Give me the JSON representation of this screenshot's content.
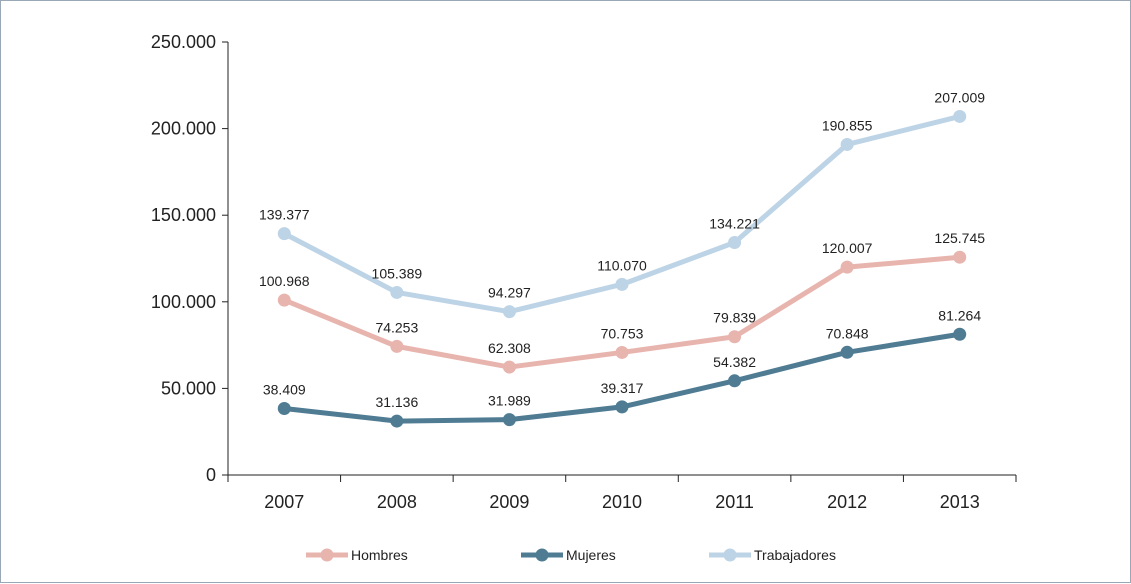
{
  "chart_data": {
    "type": "line",
    "categories": [
      "2007",
      "2008",
      "2009",
      "2010",
      "2011",
      "2012",
      "2013"
    ],
    "ylim": [
      0,
      250000
    ],
    "yticks": [
      0,
      50000,
      100000,
      150000,
      200000,
      250000
    ],
    "ytick_labels": [
      "0",
      "50.000",
      "100.000",
      "150.000",
      "200.000",
      "250.000"
    ],
    "grid": false,
    "legend_position": "bottom",
    "series": [
      {
        "name": "Hombres",
        "color": "#e8b4ae",
        "values": [
          100968,
          74253,
          62308,
          70753,
          79839,
          120007,
          125745
        ],
        "labels": [
          "100.968",
          "74.253",
          "62.308",
          "70.753",
          "79.839",
          "120.007",
          "125.745"
        ]
      },
      {
        "name": "Mujeres",
        "color": "#4f7b93",
        "values": [
          38409,
          31136,
          31989,
          39317,
          54382,
          70848,
          81264
        ],
        "labels": [
          "38.409",
          "31.136",
          "31.989",
          "39.317",
          "54.382",
          "70.848",
          "81.264"
        ]
      },
      {
        "name": "Trabajadores",
        "color": "#bdd3e6",
        "values": [
          139377,
          105389,
          94297,
          110070,
          134221,
          190855,
          207009
        ],
        "labels": [
          "139.377",
          "105.389",
          "94.297",
          "110.070",
          "134.221",
          "190.855",
          "207.009"
        ]
      }
    ]
  }
}
